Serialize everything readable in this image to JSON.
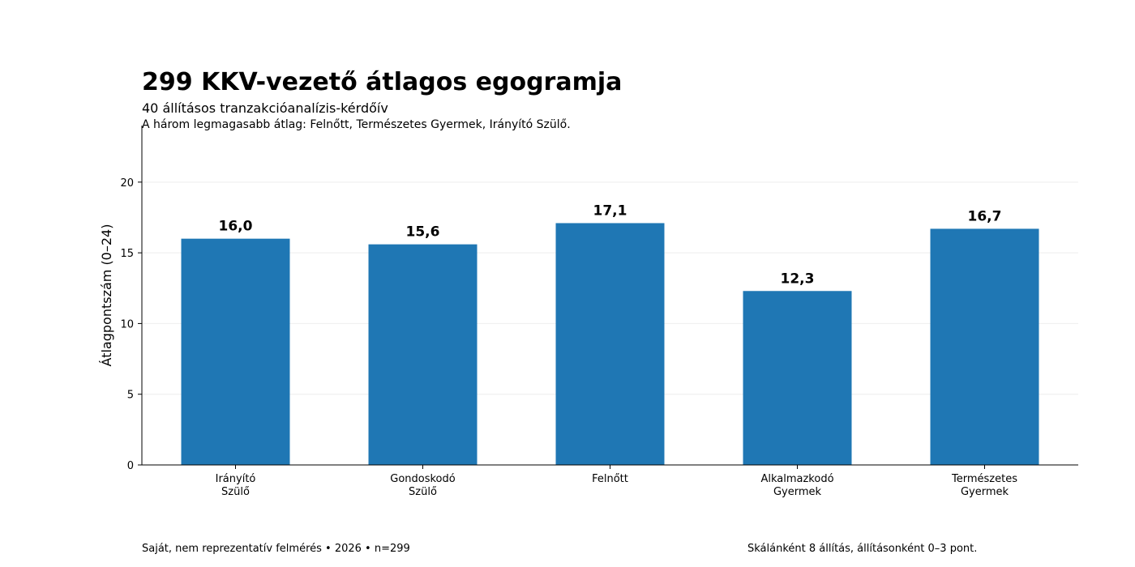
{
  "chart_data": {
    "type": "bar",
    "title": "299 KKV-vezető átlagos egogramja",
    "subtitle": "40 állításos tranzakcióanalízis-kérdőív",
    "note": "A három legmagasabb átlag: Felnőtt, Természetes Gyermek, Irányító Szülő.",
    "xlabel": "",
    "ylabel": "Átlagpontszám (0–24)",
    "categories": [
      [
        "Irányító",
        "Szülő"
      ],
      [
        "Gondoskodó",
        "Szülő"
      ],
      [
        "Felnőtt"
      ],
      [
        "Alkalmazkodó",
        "Gyermek"
      ],
      [
        "Természetes",
        "Gyermek"
      ]
    ],
    "values": [
      16.0,
      15.6,
      17.1,
      12.3,
      16.7
    ],
    "value_labels": [
      "16,0",
      "15,6",
      "17,1",
      "12,3",
      "16,7"
    ],
    "ylim": [
      0,
      24
    ],
    "yticks": [
      0,
      5,
      10,
      15,
      20
    ],
    "grid": true,
    "bar_color": "#1f77b4"
  },
  "footer": {
    "source": "Saját, nem reprezentatív felmérés • 2026 • n=299",
    "scale_note": "Skálánként 8 állítás, állításonként 0–3 pont."
  }
}
